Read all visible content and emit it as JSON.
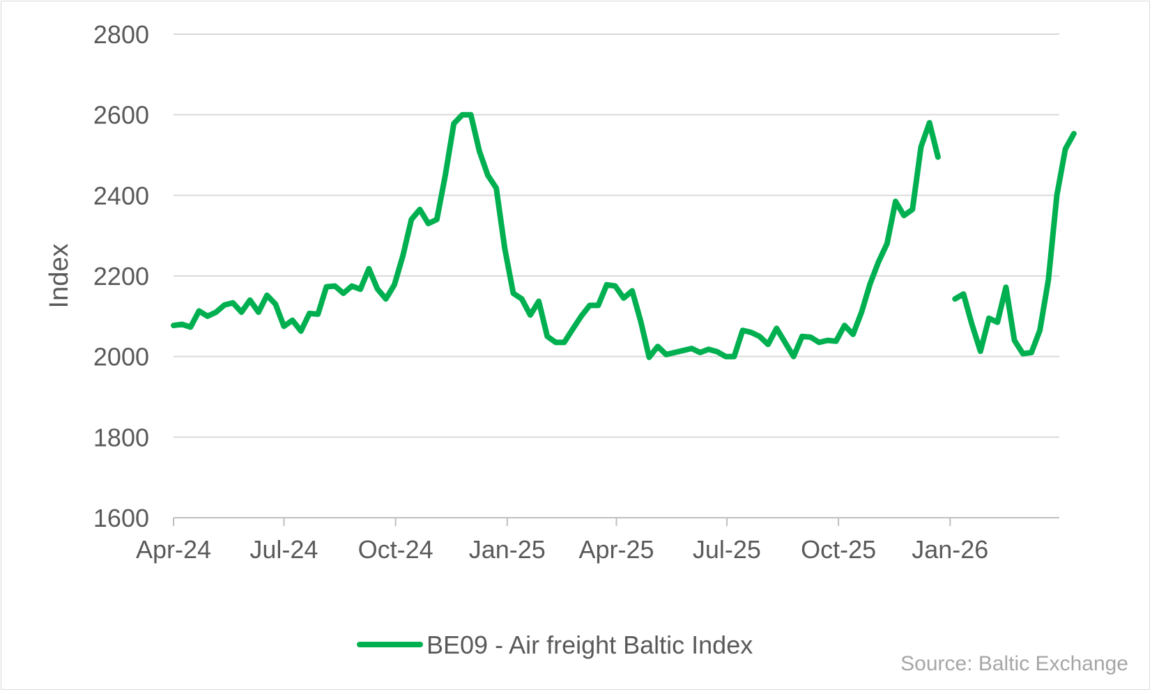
{
  "chart_data": {
    "type": "line",
    "ylabel": "Index",
    "ylim": [
      1600,
      2800
    ],
    "yticks": [
      "1600",
      "1800",
      "2000",
      "2200",
      "2400",
      "2600",
      "2800"
    ],
    "xlim": [
      "2024-04-01",
      "2026-04-01"
    ],
    "xticks": [
      {
        "date": "2024-04-01",
        "label": "Apr-24"
      },
      {
        "date": "2024-07-01",
        "label": "Jul-24"
      },
      {
        "date": "2024-10-01",
        "label": "Oct-24"
      },
      {
        "date": "2025-01-01",
        "label": "Jan-25"
      },
      {
        "date": "2025-04-01",
        "label": "Apr-25"
      },
      {
        "date": "2025-07-01",
        "label": "Jul-25"
      },
      {
        "date": "2025-10-01",
        "label": "Oct-25"
      },
      {
        "date": "2026-01-01",
        "label": "Jan-26"
      }
    ],
    "grid": true,
    "legend_position": "bottom",
    "series": [
      {
        "name": "BE09 - Air freight Baltic Index",
        "color": "#00b050",
        "segments": [
          [
            [
              "2024-04-01",
              2077
            ],
            [
              "2024-04-08",
              2080
            ],
            [
              "2024-04-15",
              2073
            ],
            [
              "2024-04-22",
              2113
            ],
            [
              "2024-04-29",
              2100
            ],
            [
              "2024-05-06",
              2110
            ],
            [
              "2024-05-13",
              2128
            ],
            [
              "2024-05-20",
              2133
            ],
            [
              "2024-05-27",
              2110
            ],
            [
              "2024-06-03",
              2140
            ],
            [
              "2024-06-10",
              2110
            ],
            [
              "2024-06-17",
              2152
            ],
            [
              "2024-06-24",
              2130
            ],
            [
              "2024-07-01",
              2075
            ],
            [
              "2024-07-08",
              2090
            ],
            [
              "2024-07-15",
              2063
            ],
            [
              "2024-07-22",
              2107
            ],
            [
              "2024-07-29",
              2105
            ],
            [
              "2024-08-05",
              2173
            ],
            [
              "2024-08-12",
              2175
            ],
            [
              "2024-08-19",
              2157
            ],
            [
              "2024-08-26",
              2175
            ],
            [
              "2024-09-02",
              2167
            ],
            [
              "2024-09-09",
              2218
            ],
            [
              "2024-09-16",
              2168
            ],
            [
              "2024-09-23",
              2143
            ],
            [
              "2024-09-30",
              2178
            ],
            [
              "2024-10-07",
              2250
            ],
            [
              "2024-10-14",
              2340
            ],
            [
              "2024-10-21",
              2365
            ],
            [
              "2024-10-28",
              2330
            ],
            [
              "2024-11-04",
              2340
            ],
            [
              "2024-11-11",
              2450
            ],
            [
              "2024-11-18",
              2578
            ],
            [
              "2024-11-25",
              2600
            ],
            [
              "2024-12-02",
              2600
            ],
            [
              "2024-12-09",
              2510
            ],
            [
              "2024-12-16",
              2450
            ],
            [
              "2024-12-23",
              2418
            ],
            [
              "2024-12-30",
              2268
            ],
            [
              "2025-01-06",
              2157
            ],
            [
              "2025-01-13",
              2143
            ],
            [
              "2025-01-20",
              2103
            ],
            [
              "2025-01-27",
              2137
            ],
            [
              "2025-02-03",
              2050
            ],
            [
              "2025-02-10",
              2035
            ],
            [
              "2025-02-17",
              2035
            ],
            [
              "2025-02-24",
              2068
            ],
            [
              "2025-03-03",
              2100
            ],
            [
              "2025-03-10",
              2127
            ],
            [
              "2025-03-17",
              2127
            ],
            [
              "2025-03-24",
              2178
            ],
            [
              "2025-03-31",
              2175
            ],
            [
              "2025-04-07",
              2145
            ],
            [
              "2025-04-14",
              2163
            ],
            [
              "2025-04-21",
              2088
            ],
            [
              "2025-04-28",
              1998
            ],
            [
              "2025-05-05",
              2025
            ],
            [
              "2025-05-12",
              2005
            ],
            [
              "2025-05-19",
              2010
            ],
            [
              "2025-05-26",
              2015
            ],
            [
              "2025-06-02",
              2020
            ],
            [
              "2025-06-09",
              2010
            ],
            [
              "2025-06-16",
              2018
            ],
            [
              "2025-06-23",
              2012
            ],
            [
              "2025-06-30",
              2000
            ],
            [
              "2025-07-07",
              2000
            ],
            [
              "2025-07-14",
              2065
            ],
            [
              "2025-07-21",
              2060
            ],
            [
              "2025-07-28",
              2050
            ],
            [
              "2025-08-04",
              2030
            ],
            [
              "2025-08-11",
              2070
            ],
            [
              "2025-08-18",
              2035
            ],
            [
              "2025-08-25",
              2000
            ],
            [
              "2025-09-01",
              2050
            ],
            [
              "2025-09-08",
              2048
            ],
            [
              "2025-09-15",
              2035
            ],
            [
              "2025-09-22",
              2040
            ],
            [
              "2025-09-29",
              2038
            ],
            [
              "2025-10-06",
              2077
            ],
            [
              "2025-10-13",
              2055
            ],
            [
              "2025-10-20",
              2110
            ],
            [
              "2025-10-27",
              2180
            ],
            [
              "2025-11-03",
              2235
            ],
            [
              "2025-11-10",
              2280
            ],
            [
              "2025-11-17",
              2385
            ],
            [
              "2025-11-24",
              2350
            ],
            [
              "2025-12-01",
              2365
            ],
            [
              "2025-12-08",
              2520
            ],
            [
              "2025-12-15",
              2580
            ],
            [
              "2025-12-22",
              2495
            ]
          ],
          [
            [
              "2026-01-05",
              2143
            ],
            [
              "2026-01-12",
              2155
            ],
            [
              "2026-01-19",
              2080
            ],
            [
              "2026-01-26",
              2013
            ],
            [
              "2026-02-02",
              2095
            ],
            [
              "2026-02-09",
              2085
            ],
            [
              "2026-02-16",
              2172
            ],
            [
              "2026-02-23",
              2040
            ],
            [
              "2026-03-02",
              2007
            ],
            [
              "2026-03-09",
              2010
            ],
            [
              "2026-03-16",
              2065
            ],
            [
              "2026-03-23",
              2190
            ],
            [
              "2026-03-30",
              2400
            ],
            [
              "2026-04-06",
              2515
            ],
            [
              "2026-04-13",
              2553
            ]
          ]
        ]
      }
    ]
  },
  "source_text": "Source: Baltic Exchange"
}
